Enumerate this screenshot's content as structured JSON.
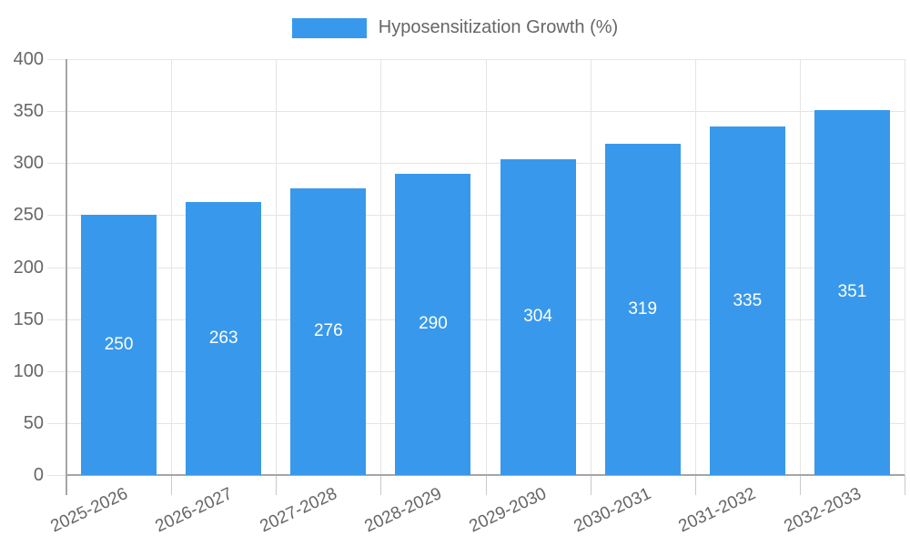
{
  "legend": {
    "label": "Hyposensitization Growth (%)"
  },
  "colors": {
    "bar": "#3899ec",
    "axis": "#a6a6a6",
    "grid": "#e5e5e5",
    "tick": "#c9c9c9",
    "axis_text": "#666666",
    "bar_label_text": "#ffffff",
    "background": "#ffffff"
  },
  "chart_data": {
    "type": "bar",
    "title": "Hyposensitization Growth (%)",
    "categories": [
      "2025-2026",
      "2026-2027",
      "2027-2028",
      "2028-2029",
      "2029-2030",
      "2030-2031",
      "2031-2032",
      "2032-2033"
    ],
    "values": [
      250,
      263,
      276,
      290,
      304,
      319,
      335,
      351
    ],
    "bar_labels": [
      "250",
      "263",
      "276",
      "290",
      "304",
      "319",
      "335",
      "351"
    ],
    "xlabel": "",
    "ylabel": "",
    "ylim": [
      0,
      400
    ],
    "yticks": [
      0,
      50,
      100,
      150,
      200,
      250,
      300,
      350,
      400
    ],
    "grid": true,
    "legend_position": "top",
    "x_label_rotation_deg": -25
  }
}
